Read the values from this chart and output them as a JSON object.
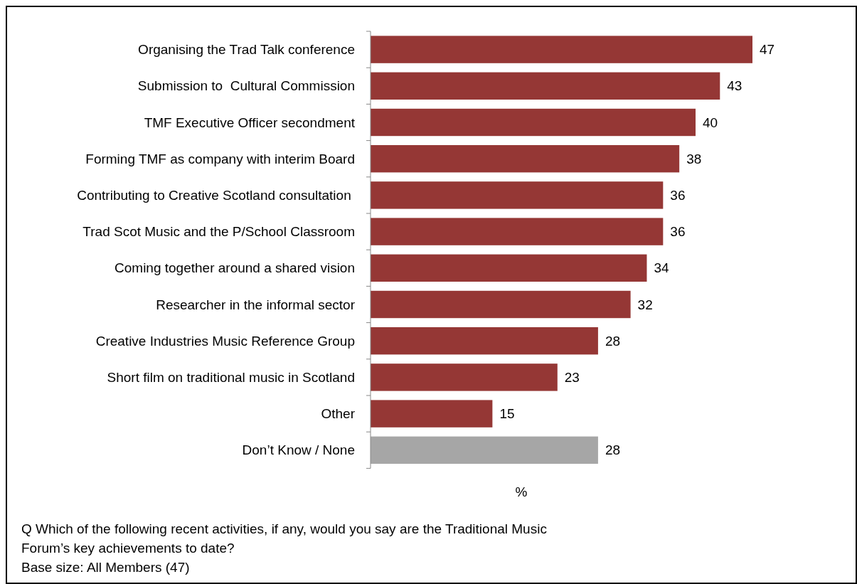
{
  "chart_data": {
    "type": "bar",
    "orientation": "horizontal",
    "xlabel": "%",
    "data_labels": true,
    "categories": [
      "Organising the Trad Talk conference",
      "Submission to  Cultural Commission",
      "TMF Executive Officer secondment",
      "Forming TMF as company with interim Board",
      "Contributing to Creative Scotland consultation ",
      "Trad Scot Music and the P/School Classroom",
      "Coming together around a shared vision",
      "Researcher in the informal sector",
      "Creative Industries Music Reference Group",
      "Short film on traditional music in Scotland",
      "Other",
      "Don’t Know / None"
    ],
    "values": [
      47,
      43,
      40,
      38,
      36,
      36,
      34,
      32,
      28,
      23,
      15,
      28
    ],
    "colors": [
      "#953735",
      "#953735",
      "#953735",
      "#953735",
      "#953735",
      "#953735",
      "#953735",
      "#953735",
      "#953735",
      "#953735",
      "#953735",
      "#a6a6a6"
    ],
    "annotations": [
      "Q  Which of the following recent activities, if any, would you say are the Traditional  Music Forum’s key achievements to date?",
      "Base size: All Members (47)"
    ]
  }
}
